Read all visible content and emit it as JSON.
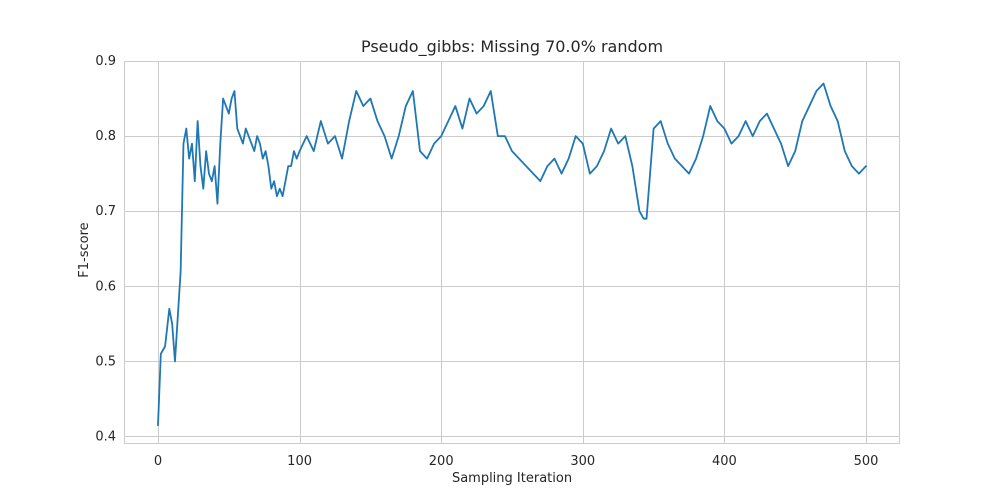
{
  "chart_data": {
    "type": "line",
    "title": "Pseudo_gibbs: Missing 70.0% random",
    "xlabel": "Sampling Iteration",
    "ylabel": "F1-score",
    "xlim": [
      -24,
      524
    ],
    "ylim": [
      0.39,
      0.9
    ],
    "xticks": [
      0,
      100,
      200,
      300,
      400,
      500
    ],
    "yticks": [
      0.4,
      0.5,
      0.6,
      0.7,
      0.8,
      0.9
    ],
    "xtick_labels": [
      "0",
      "100",
      "200",
      "300",
      "400",
      "500"
    ],
    "ytick_labels": [
      "0.4",
      "0.5",
      "0.6",
      "0.7",
      "0.8",
      "0.9"
    ],
    "grid": true,
    "colors": {
      "line": "#1f77b4",
      "grid": "#cccccc",
      "spine": "#cccccc",
      "text": "#262626"
    },
    "series": [
      {
        "x": [
          0,
          2,
          5,
          8,
          10,
          12,
          14,
          16,
          18,
          20,
          22,
          24,
          26,
          28,
          30,
          32,
          34,
          36,
          38,
          40,
          42,
          44,
          46,
          48,
          50,
          52,
          54,
          56,
          58,
          60,
          62,
          64,
          66,
          68,
          70,
          72,
          74,
          76,
          78,
          80,
          82,
          84,
          86,
          88,
          90,
          92,
          94,
          96,
          98,
          100,
          105,
          110,
          115,
          120,
          125,
          130,
          135,
          140,
          145,
          150,
          155,
          160,
          165,
          170,
          175,
          180,
          185,
          190,
          195,
          200,
          205,
          210,
          215,
          220,
          225,
          230,
          235,
          240,
          245,
          250,
          255,
          260,
          265,
          270,
          275,
          280,
          285,
          290,
          295,
          300,
          305,
          310,
          315,
          320,
          325,
          330,
          335,
          340,
          343,
          345,
          350,
          355,
          360,
          365,
          370,
          375,
          380,
          385,
          390,
          395,
          400,
          405,
          410,
          415,
          420,
          425,
          430,
          435,
          440,
          445,
          450,
          455,
          460,
          465,
          470,
          475,
          480,
          485,
          490,
          495,
          500
        ],
        "y": [
          0.415,
          0.51,
          0.52,
          0.57,
          0.55,
          0.5,
          0.56,
          0.62,
          0.79,
          0.81,
          0.77,
          0.79,
          0.74,
          0.82,
          0.76,
          0.73,
          0.78,
          0.75,
          0.74,
          0.76,
          0.71,
          0.79,
          0.85,
          0.84,
          0.83,
          0.85,
          0.86,
          0.81,
          0.8,
          0.79,
          0.81,
          0.8,
          0.79,
          0.78,
          0.8,
          0.79,
          0.77,
          0.78,
          0.76,
          0.73,
          0.74,
          0.72,
          0.73,
          0.72,
          0.74,
          0.76,
          0.76,
          0.78,
          0.77,
          0.78,
          0.8,
          0.78,
          0.82,
          0.79,
          0.8,
          0.77,
          0.82,
          0.86,
          0.84,
          0.85,
          0.82,
          0.8,
          0.77,
          0.8,
          0.84,
          0.86,
          0.78,
          0.77,
          0.79,
          0.8,
          0.82,
          0.84,
          0.81,
          0.85,
          0.83,
          0.84,
          0.86,
          0.8,
          0.8,
          0.78,
          0.77,
          0.76,
          0.75,
          0.74,
          0.76,
          0.77,
          0.75,
          0.77,
          0.8,
          0.79,
          0.75,
          0.76,
          0.78,
          0.81,
          0.79,
          0.8,
          0.76,
          0.7,
          0.69,
          0.69,
          0.81,
          0.82,
          0.79,
          0.77,
          0.76,
          0.75,
          0.77,
          0.8,
          0.84,
          0.82,
          0.81,
          0.79,
          0.8,
          0.82,
          0.8,
          0.82,
          0.83,
          0.81,
          0.79,
          0.76,
          0.78,
          0.82,
          0.84,
          0.86,
          0.87,
          0.84,
          0.82,
          0.78,
          0.76,
          0.75,
          0.76
        ]
      }
    ]
  }
}
